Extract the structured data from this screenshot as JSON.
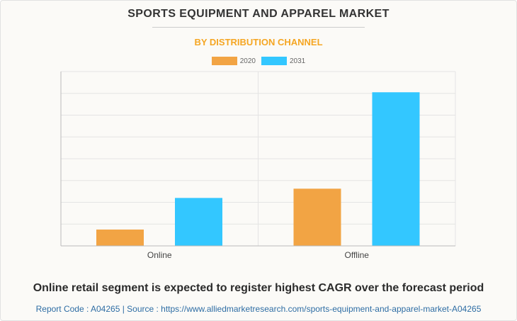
{
  "header": {
    "title": "SPORTS EQUIPMENT AND APPAREL MARKET",
    "subtitle": "BY DISTRIBUTION CHANNEL"
  },
  "colors": {
    "series_2020": "#f2a444",
    "series_2031": "#33c7ff",
    "grid": "#e4e4e4",
    "axis": "#bbbbbb"
  },
  "chart_data": {
    "type": "bar",
    "categories": [
      "Online",
      "Offline"
    ],
    "series": [
      {
        "name": "2020",
        "values": [
          3.0,
          10.5
        ]
      },
      {
        "name": "2031",
        "values": [
          8.8,
          28.2
        ]
      }
    ],
    "ylim": [
      0,
      32
    ],
    "grid": true,
    "legend_position": "top-center",
    "title": "",
    "xlabel": "",
    "ylabel": ""
  },
  "caption": "Online retail segment is expected to register highest CAGR over the forecast period",
  "footer": "Report Code : A04265  |  Source : https://www.alliedmarketresearch.com/sports-equipment-and-apparel-market-A04265"
}
